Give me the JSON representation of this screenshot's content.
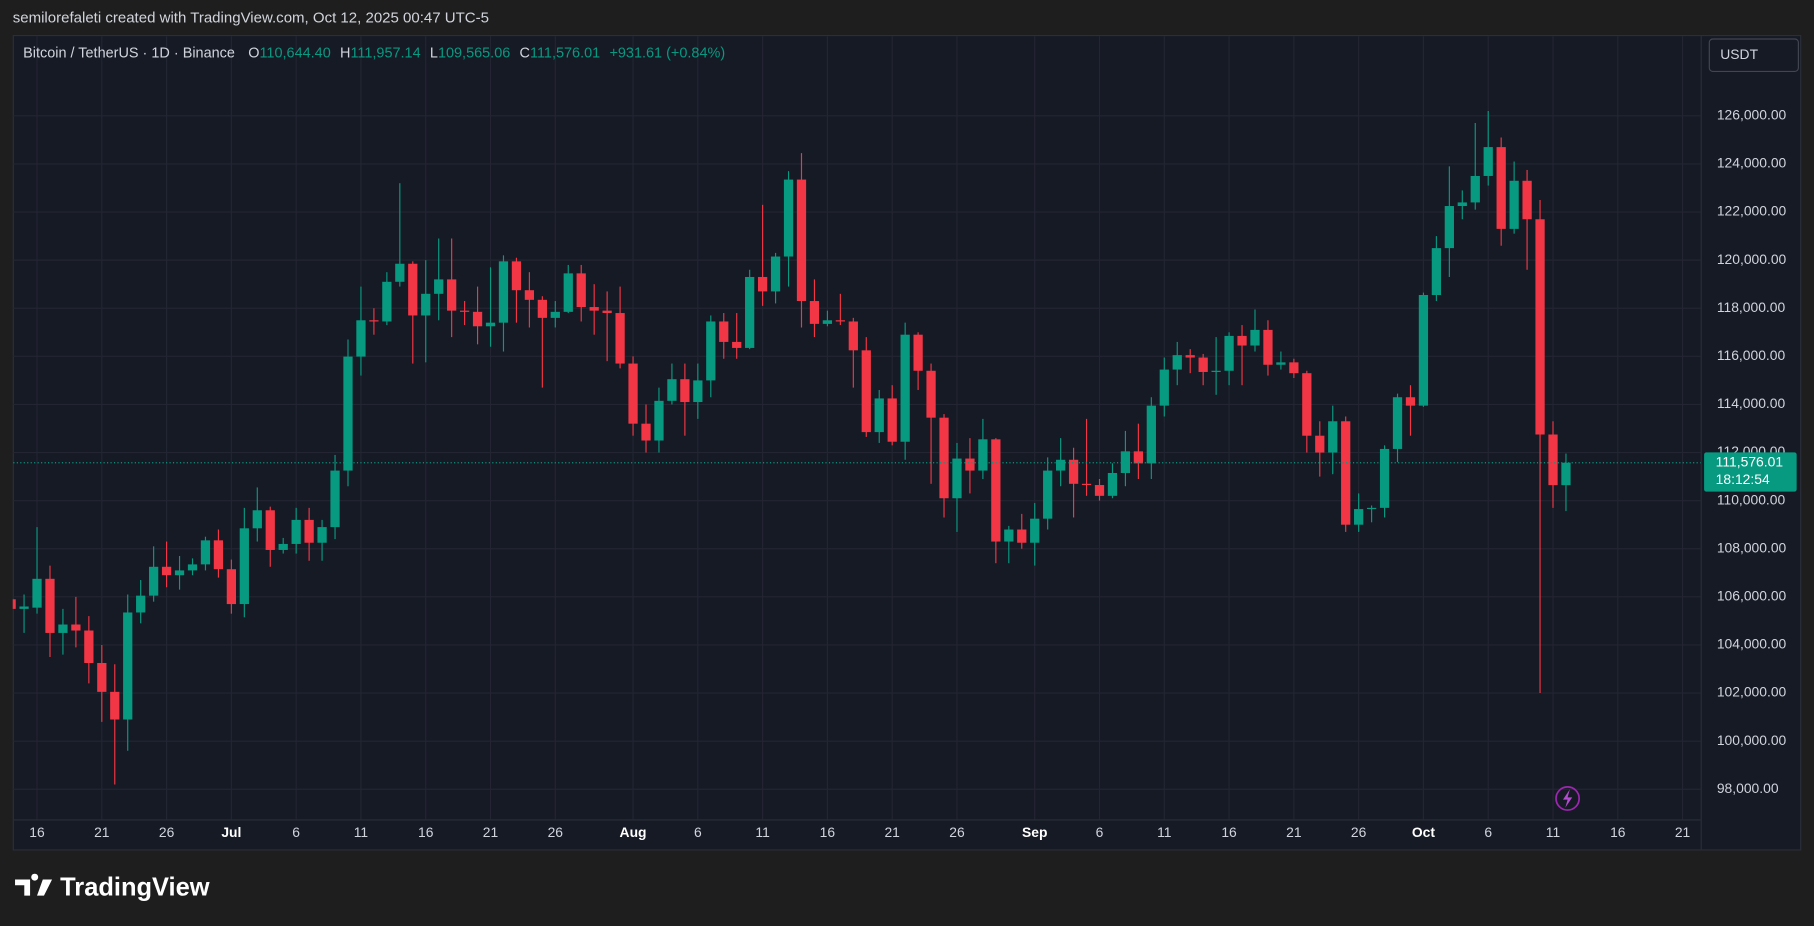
{
  "attribution": "semilorefaleti created with TradingView.com, Oct 12, 2025 00:47 UTC-5",
  "footer": {
    "logo": "TradingView"
  },
  "chart_data": {
    "type": "candlestick",
    "symbol": "Bitcoin / TetherUS · 1D · Binance",
    "ohlc_header": [
      {
        "key": "O",
        "value": "110,644.40"
      },
      {
        "key": "H",
        "value": "111,957.14"
      },
      {
        "key": "L",
        "value": "109,565.06"
      },
      {
        "key": "C",
        "value": "111,576.01"
      }
    ],
    "change": "+931.61 (+0.84%)",
    "currency": "USDT",
    "price_label": "111,576.01",
    "countdown": "18:12:54",
    "up_color": "#089981",
    "down_color": "#f23645",
    "grid": true,
    "x": [
      "2025-06-14",
      "2025-06-15",
      "2025-06-16",
      "2025-06-17",
      "2025-06-18",
      "2025-06-19",
      "2025-06-20",
      "2025-06-21",
      "2025-06-22",
      "2025-06-23",
      "2025-06-24",
      "2025-06-25",
      "2025-06-26",
      "2025-06-27",
      "2025-06-28",
      "2025-06-29",
      "2025-06-30",
      "2025-07-01",
      "2025-07-02",
      "2025-07-03",
      "2025-07-04",
      "2025-07-05",
      "2025-07-06",
      "2025-07-07",
      "2025-07-08",
      "2025-07-09",
      "2025-07-10",
      "2025-07-11",
      "2025-07-12",
      "2025-07-13",
      "2025-07-14",
      "2025-07-15",
      "2025-07-16",
      "2025-07-17",
      "2025-07-18",
      "2025-07-19",
      "2025-07-20",
      "2025-07-21",
      "2025-07-22",
      "2025-07-23",
      "2025-07-24",
      "2025-07-25",
      "2025-07-26",
      "2025-07-27",
      "2025-07-28",
      "2025-07-29",
      "2025-07-30",
      "2025-07-31",
      "2025-08-01",
      "2025-08-02",
      "2025-08-03",
      "2025-08-04",
      "2025-08-05",
      "2025-08-06",
      "2025-08-07",
      "2025-08-08",
      "2025-08-09",
      "2025-08-10",
      "2025-08-11",
      "2025-08-12",
      "2025-08-13",
      "2025-08-14",
      "2025-08-15",
      "2025-08-16",
      "2025-08-17",
      "2025-08-18",
      "2025-08-19",
      "2025-08-20",
      "2025-08-21",
      "2025-08-22",
      "2025-08-23",
      "2025-08-24",
      "2025-08-25",
      "2025-08-26",
      "2025-08-27",
      "2025-08-28",
      "2025-08-29",
      "2025-08-30",
      "2025-08-31",
      "2025-09-01",
      "2025-09-02",
      "2025-09-03",
      "2025-09-04",
      "2025-09-05",
      "2025-09-06",
      "2025-09-07",
      "2025-09-08",
      "2025-09-09",
      "2025-09-10",
      "2025-09-11",
      "2025-09-12",
      "2025-09-13",
      "2025-09-14",
      "2025-09-15",
      "2025-09-16",
      "2025-09-17",
      "2025-09-18",
      "2025-09-19",
      "2025-09-20",
      "2025-09-21",
      "2025-09-22",
      "2025-09-23",
      "2025-09-24",
      "2025-09-25",
      "2025-09-26",
      "2025-09-27",
      "2025-09-28",
      "2025-09-29",
      "2025-09-30",
      "2025-10-01",
      "2025-10-02",
      "2025-10-03",
      "2025-10-04",
      "2025-10-05",
      "2025-10-06",
      "2025-10-07",
      "2025-10-08",
      "2025-10-09",
      "2025-10-10",
      "2025-10-11",
      "2025-10-12"
    ],
    "open": [
      105900,
      105500,
      105550,
      106750,
      104500,
      104850,
      104600,
      103250,
      102050,
      100900,
      105350,
      106050,
      107250,
      106900,
      107100,
      107350,
      108350,
      107150,
      105700,
      108850,
      109600,
      107950,
      108200,
      109200,
      108250,
      108900,
      111250,
      115990,
      117500,
      117450,
      119100,
      119850,
      117700,
      118600,
      119200,
      117900,
      117850,
      117250,
      117400,
      119950,
      118750,
      118350,
      117600,
      117850,
      119450,
      118050,
      117900,
      117800,
      115700,
      113200,
      112500,
      114150,
      115050,
      114100,
      115000,
      117450,
      116600,
      116350,
      119300,
      118700,
      120150,
      123350,
      118300,
      117350,
      117500,
      117450,
      116250,
      112850,
      114250,
      112450,
      116900,
      115400,
      113450,
      110100,
      111750,
      111250,
      112550,
      108300,
      108800,
      108250,
      109250,
      111250,
      111700,
      110700,
      110650,
      110200,
      111150,
      112050,
      111550,
      113950,
      115450,
      116050,
      115950,
      115350,
      115400,
      116850,
      116450,
      117100,
      115650,
      115750,
      115300,
      112700,
      112000,
      113300,
      109000,
      109650,
      109700,
      112150,
      114300,
      113950,
      118550,
      120500,
      122250,
      122400,
      123500,
      124700,
      121300,
      123300,
      121700,
      112750,
      110644.4
    ],
    "high": [
      106200,
      106100,
      108900,
      107300,
      105500,
      106000,
      105200,
      104000,
      103200,
      106100,
      106700,
      108100,
      108300,
      107700,
      107600,
      108500,
      108800,
      107550,
      109700,
      110550,
      109750,
      108450,
      109700,
      109700,
      109200,
      111900,
      116700,
      118900,
      118000,
      119500,
      123200,
      119950,
      120000,
      120900,
      120900,
      118300,
      118900,
      119700,
      120200,
      120100,
      119500,
      118500,
      118300,
      119800,
      119800,
      119000,
      118700,
      118900,
      116000,
      114000,
      114700,
      115700,
      115700,
      115700,
      117700,
      117800,
      117800,
      119600,
      122300,
      120300,
      123700,
      124450,
      119200,
      117900,
      118600,
      117600,
      116800,
      114600,
      114800,
      117400,
      117000,
      115700,
      113600,
      112400,
      112600,
      113400,
      112600,
      108950,
      109450,
      109900,
      111800,
      112600,
      112200,
      113400,
      110900,
      111550,
      112900,
      113200,
      114300,
      115950,
      116600,
      116300,
      116100,
      116800,
      117000,
      117300,
      117950,
      117500,
      116200,
      115900,
      115400,
      113300,
      113950,
      113500,
      110300,
      109800,
      112300,
      114450,
      114800,
      118650,
      121000,
      123900,
      122900,
      125700,
      126200,
      125100,
      124100,
      123750,
      122500,
      113300,
      111957.14
    ],
    "low": [
      104900,
      104500,
      105300,
      103500,
      103600,
      103900,
      102400,
      100800,
      98200,
      99600,
      104900,
      105800,
      106400,
      106300,
      106900,
      107100,
      106800,
      105300,
      105150,
      108300,
      107250,
      107800,
      107800,
      107500,
      107500,
      108400,
      110600,
      115200,
      116900,
      117300,
      118900,
      115700,
      115750,
      117500,
      116800,
      117300,
      116500,
      116400,
      116200,
      117400,
      117200,
      114700,
      117200,
      117800,
      117450,
      116900,
      115800,
      115500,
      112700,
      112000,
      112000,
      114000,
      112700,
      113400,
      114300,
      115900,
      115900,
      116300,
      118100,
      118200,
      118900,
      117200,
      116800,
      117250,
      117300,
      114700,
      112650,
      112400,
      112300,
      111700,
      114600,
      110700,
      109300,
      108700,
      110300,
      110900,
      107400,
      107400,
      108000,
      107300,
      108800,
      110600,
      109300,
      110200,
      110000,
      110100,
      110600,
      110900,
      110900,
      113500,
      114800,
      115300,
      114800,
      114400,
      114800,
      114800,
      116200,
      115200,
      115450,
      115100,
      112000,
      111000,
      111100,
      108700,
      108700,
      109100,
      109300,
      111600,
      112700,
      113900,
      118300,
      119300,
      121700,
      122100,
      123100,
      120600,
      121100,
      119600,
      102000,
      109700,
      109565.06
    ],
    "close": [
      105500,
      105600,
      106750,
      104500,
      104850,
      104600,
      103250,
      102050,
      100900,
      105350,
      106050,
      107250,
      106900,
      107100,
      107350,
      108350,
      107150,
      105700,
      108850,
      109600,
      107950,
      108200,
      109200,
      108250,
      108900,
      111250,
      115990,
      117500,
      117450,
      119100,
      119850,
      117700,
      118600,
      119200,
      117900,
      117850,
      117250,
      117400,
      119950,
      118750,
      118350,
      117600,
      117850,
      119450,
      118050,
      117900,
      117800,
      115700,
      113200,
      112500,
      114150,
      115050,
      114100,
      115000,
      117450,
      116600,
      116350,
      119300,
      118700,
      120150,
      123350,
      118300,
      117350,
      117500,
      117450,
      116250,
      112850,
      114250,
      112450,
      116900,
      115400,
      113450,
      110100,
      111750,
      111250,
      112550,
      108300,
      108800,
      108250,
      109250,
      111250,
      111700,
      110700,
      110650,
      110200,
      111150,
      112050,
      111550,
      113950,
      115450,
      116050,
      115950,
      115350,
      115400,
      116850,
      116450,
      117100,
      115650,
      115750,
      115300,
      112700,
      112000,
      113300,
      109000,
      109650,
      109700,
      112150,
      114300,
      113950,
      118550,
      120500,
      122250,
      122400,
      123500,
      124700,
      121300,
      123300,
      121700,
      112750,
      110644.4,
      111576.01
    ],
    "xlim": [
      "2025-06-14",
      "2025-10-22"
    ],
    "xticks": [
      {
        "value": "2025-06-16",
        "label": "16"
      },
      {
        "value": "2025-06-21",
        "label": "21"
      },
      {
        "value": "2025-06-26",
        "label": "26"
      },
      {
        "value": "2025-07-01",
        "label": "Jul"
      },
      {
        "value": "2025-07-06",
        "label": "6"
      },
      {
        "value": "2025-07-11",
        "label": "11"
      },
      {
        "value": "2025-07-16",
        "label": "16"
      },
      {
        "value": "2025-07-21",
        "label": "21"
      },
      {
        "value": "2025-07-26",
        "label": "26"
      },
      {
        "value": "2025-08-01",
        "label": "Aug"
      },
      {
        "value": "2025-08-06",
        "label": "6"
      },
      {
        "value": "2025-08-11",
        "label": "11"
      },
      {
        "value": "2025-08-16",
        "label": "16"
      },
      {
        "value": "2025-08-21",
        "label": "21"
      },
      {
        "value": "2025-08-26",
        "label": "26"
      },
      {
        "value": "2025-09-01",
        "label": "Sep"
      },
      {
        "value": "2025-09-06",
        "label": "6"
      },
      {
        "value": "2025-09-11",
        "label": "11"
      },
      {
        "value": "2025-09-16",
        "label": "16"
      },
      {
        "value": "2025-09-21",
        "label": "21"
      },
      {
        "value": "2025-09-26",
        "label": "26"
      },
      {
        "value": "2025-10-01",
        "label": "Oct"
      },
      {
        "value": "2025-10-06",
        "label": "6"
      },
      {
        "value": "2025-10-11",
        "label": "11"
      },
      {
        "value": "2025-10-16",
        "label": "16"
      },
      {
        "value": "2025-10-21",
        "label": "21"
      }
    ],
    "ylim": [
      96750,
      127920
    ],
    "yticks": [
      {
        "value": 98000,
        "label": "98,000.00"
      },
      {
        "value": 100000,
        "label": "100,000.00"
      },
      {
        "value": 102000,
        "label": "102,000.00"
      },
      {
        "value": 104000,
        "label": "104,000.00"
      },
      {
        "value": 106000,
        "label": "106,000.00"
      },
      {
        "value": 108000,
        "label": "108,000.00"
      },
      {
        "value": 110000,
        "label": "110,000.00"
      },
      {
        "value": 112000,
        "label": "112,000.00"
      },
      {
        "value": 114000,
        "label": "114,000.00"
      },
      {
        "value": 116000,
        "label": "116,000.00"
      },
      {
        "value": 118000,
        "label": "118,000.00"
      },
      {
        "value": 120000,
        "label": "120,000.00"
      },
      {
        "value": 122000,
        "label": "122,000.00"
      },
      {
        "value": 124000,
        "label": "124,000.00"
      },
      {
        "value": 126000,
        "label": "126,000.00"
      }
    ]
  }
}
